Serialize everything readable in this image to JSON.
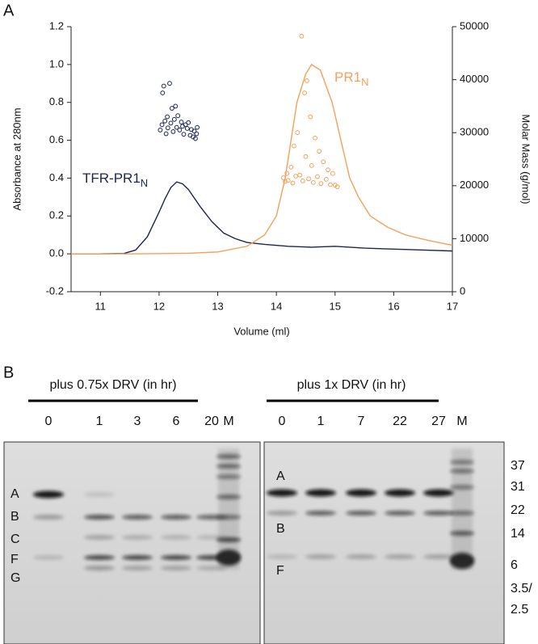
{
  "chart_data": {
    "type": "line",
    "panel_label": "A",
    "y_label": "Absorbance at 280nm",
    "y2_label": "Molar Mass (g/mol)",
    "x_label": "Volume (ml)",
    "xlim": [
      10.5,
      17
    ],
    "xticks": [
      11,
      12,
      13,
      14,
      15,
      16,
      17
    ],
    "ylim": [
      -0.2,
      1.2
    ],
    "yticks": [
      -0.2,
      {
        "value": 0,
        "label": "0.0"
      },
      0.2,
      0.4,
      0.6,
      0.8,
      {
        "value": 1,
        "label": "1.0"
      },
      1.2
    ],
    "y2lim": [
      0,
      50000
    ],
    "y2ticks": [
      0,
      10000,
      20000,
      30000,
      40000,
      50000
    ],
    "annotations": [
      {
        "text": "TFR-PR1",
        "sub": "N",
        "color": "#1b2550"
      },
      {
        "text": "PR1",
        "sub": "N",
        "color": "#f4a05a"
      }
    ],
    "series": [
      {
        "type": "line",
        "color": "#1b2550",
        "x": [
          10.5,
          11,
          11.4,
          11.6,
          11.8,
          12.0,
          12.1,
          12.2,
          12.3,
          12.4,
          12.5,
          12.7,
          12.9,
          13.1,
          13.3,
          13.5,
          13.8,
          14.2,
          14.6,
          15.0,
          15.5,
          16,
          16.5,
          17
        ],
        "values": [
          0,
          0,
          0.002,
          0.02,
          0.09,
          0.22,
          0.29,
          0.35,
          0.38,
          0.37,
          0.34,
          0.25,
          0.17,
          0.11,
          0.08,
          0.06,
          0.05,
          0.04,
          0.035,
          0.04,
          0.03,
          0.025,
          0.02,
          0.015
        ]
      },
      {
        "type": "line",
        "color": "#f4a05a",
        "x": [
          10.5,
          11.5,
          12.5,
          13,
          13.5,
          13.8,
          14,
          14.15,
          14.25,
          14.35,
          14.5,
          14.6,
          14.75,
          14.95,
          15.1,
          15.25,
          15.4,
          15.6,
          15.9,
          16.2,
          16.6,
          17
        ],
        "values": [
          0,
          0,
          0.003,
          0.01,
          0.04,
          0.1,
          0.2,
          0.4,
          0.6,
          0.8,
          0.95,
          1.0,
          0.97,
          0.8,
          0.6,
          0.4,
          0.3,
          0.2,
          0.14,
          0.1,
          0.07,
          0.045
        ]
      },
      {
        "type": "scatter",
        "axis": "y2",
        "color": "#1b2550",
        "x": [
          12.02,
          12.05,
          12.06,
          12.08,
          12.1,
          12.12,
          12.14,
          12.15,
          12.18,
          12.2,
          12.22,
          12.24,
          12.26,
          12.28,
          12.3,
          12.32,
          12.35,
          12.38,
          12.4,
          12.42,
          12.45,
          12.48,
          12.5,
          12.53,
          12.55,
          12.58,
          12.6,
          12.62,
          12.64,
          12.65
        ],
        "values": [
          30500,
          31500,
          37500,
          38800,
          32200,
          29800,
          33000,
          30900,
          39300,
          31800,
          34600,
          30200,
          32500,
          35000,
          31000,
          33200,
          30500,
          32000,
          31200,
          29700,
          31500,
          30800,
          31900,
          29500,
          30600,
          29200,
          30300,
          28900,
          29800,
          31000
        ]
      },
      {
        "type": "scatter",
        "axis": "y2",
        "color": "#f4a05a",
        "x": [
          14.12,
          14.15,
          14.18,
          14.2,
          14.25,
          14.28,
          14.3,
          14.33,
          14.36,
          14.4,
          14.43,
          14.45,
          14.48,
          14.5,
          14.52,
          14.55,
          14.58,
          14.6,
          14.63,
          14.66,
          14.7,
          14.73,
          14.76,
          14.8,
          14.85,
          14.88,
          14.92,
          14.96,
          15.0,
          15.04
        ],
        "values": [
          21500,
          20800,
          22300,
          21000,
          23500,
          20500,
          27500,
          21800,
          30000,
          22000,
          48200,
          20900,
          37500,
          25500,
          39800,
          21300,
          33000,
          23800,
          20600,
          29000,
          21700,
          26500,
          20400,
          24500,
          21200,
          23000,
          20200,
          22300,
          20100,
          19800
        ]
      }
    ]
  },
  "gel": {
    "panel_label": "B",
    "left": {
      "header": "plus 0.75x DRV (in hr)",
      "lanes": [
        "0",
        "1",
        "3",
        "6",
        "20",
        "M"
      ],
      "bands": [
        "A",
        "B",
        "C",
        "F",
        "G"
      ]
    },
    "right": {
      "header": "plus 1x DRV (in hr)",
      "lanes": [
        "0",
        "1",
        "7",
        "22",
        "27",
        "M"
      ],
      "bands": [
        "A",
        "B",
        "F"
      ],
      "sizes": [
        "37",
        "31",
        "22",
        "14",
        "6",
        "3.5/",
        "2.5"
      ]
    }
  }
}
